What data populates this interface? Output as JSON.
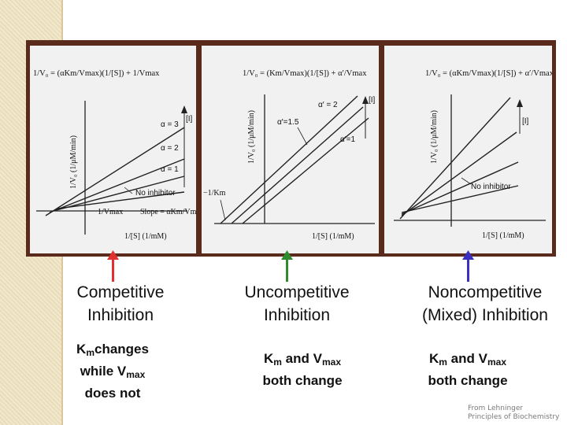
{
  "panels": [
    {
      "formula": "1/V₀ = (αKm/Vmax)(1/[S]) + 1/Vmax",
      "ylabel": "1/V₀ (1/μM/min)",
      "xlabel": "1/[S] (1/mM)",
      "inhibitor_label": "[I]",
      "line_labels": [
        "α = 3",
        "α = 2",
        "α = 1"
      ],
      "no_inhibitor": "No inhibitor",
      "intercept_label": "1/Vmax",
      "slope_label": "Slope = αKm/Vmax",
      "title_line1": "Competitive",
      "title_line2": "Inhibition",
      "note_k": "K",
      "note_m": "m",
      "note_mid": "changes",
      "note_while": "while V",
      "note_max": "max",
      "note_end": "does not",
      "arrow_color": "#e03030"
    },
    {
      "formula": "1/V₀ = (Km/Vmax)(1/[S]) + α′/Vmax",
      "ylabel": "1/V₀ (1/μM/min)",
      "xlabel": "1/[S] (1/mM)",
      "inhibitor_label": "[I]",
      "line_labels": [
        "α′ = 2",
        "α′=1.5",
        "α′=1"
      ],
      "intercept_label": "−1/Km",
      "title_line1": "Uncompetitive",
      "title_line2": "Inhibition",
      "note_k": "K",
      "note_m": "m",
      "note_and": " and V",
      "note_max": "max",
      "note_end": "both change",
      "arrow_color": "#2e8b2e"
    },
    {
      "formula": "1/V₀ = (αKm/Vmax)(1/[S]) + α′/Vmax",
      "ylabel": "1/V₀ (1/μM/min)",
      "xlabel": "1/[S] (1/mM)",
      "inhibitor_label": "[I]",
      "no_inhibitor": "No inhibitor",
      "title_line1": "Noncompetitive",
      "title_line2": "(Mixed) Inhibition",
      "note_k": "K",
      "note_m": "m",
      "note_and": " and V",
      "note_max": "max",
      "note_end": "both change",
      "arrow_color": "#3a2fc0"
    }
  ],
  "credit_line1": "From Lehninger",
  "credit_line2": "Principles of Biochemistry"
}
